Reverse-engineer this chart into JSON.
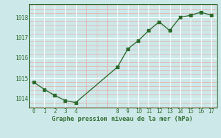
{
  "x": [
    0,
    1,
    2,
    3,
    4,
    8,
    9,
    10,
    11,
    12,
    13,
    14,
    15,
    16,
    17
  ],
  "y": [
    1014.8,
    1014.45,
    1014.15,
    1013.9,
    1013.8,
    1015.55,
    1016.45,
    1016.85,
    1017.35,
    1017.78,
    1017.35,
    1018.0,
    1018.1,
    1018.25,
    1018.1
  ],
  "line_color": "#2d6a2d",
  "marker_color": "#2d6a2d",
  "bg_color": "#cce8e8",
  "grid_major_color": "#ffffff",
  "grid_minor_color": "#e8b0b0",
  "xlabel": "Graphe pression niveau de la mer (hPa)",
  "xlabel_color": "#2d6a2d",
  "xticks": [
    0,
    1,
    2,
    3,
    4,
    8,
    9,
    10,
    11,
    12,
    13,
    14,
    15,
    16,
    17
  ],
  "yticks": [
    1014,
    1015,
    1016,
    1017,
    1018
  ],
  "ylim": [
    1013.55,
    1018.65
  ],
  "xlim": [
    -0.5,
    17.5
  ]
}
